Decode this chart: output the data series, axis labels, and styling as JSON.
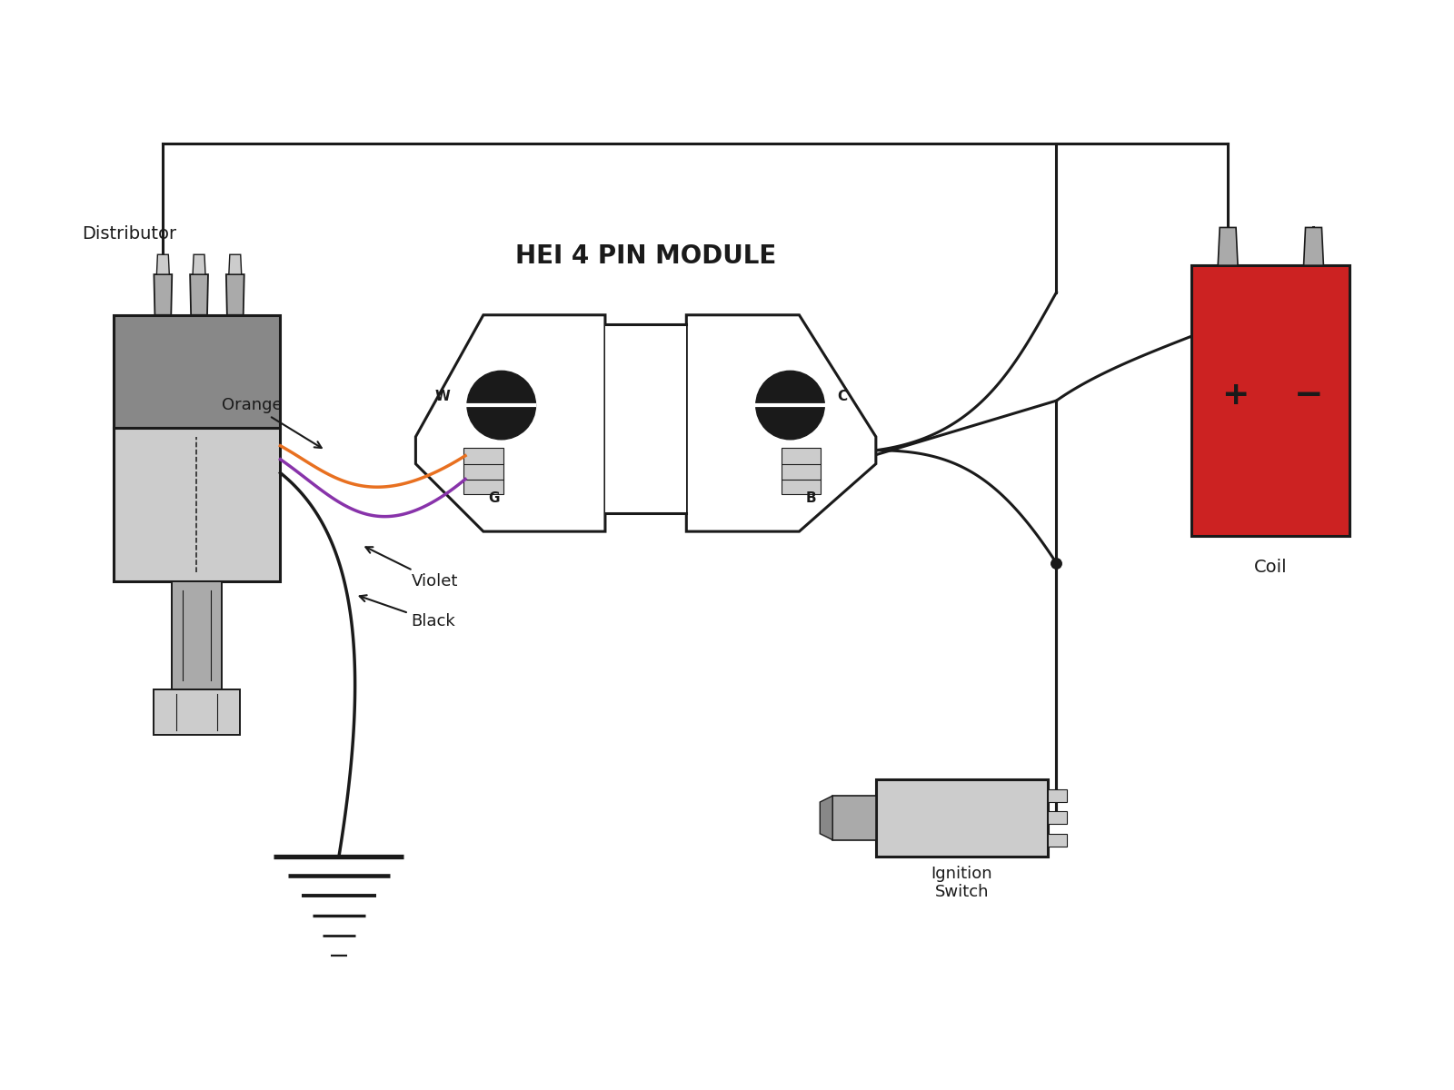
{
  "title": "HEI 4 PIN MODULE",
  "bg_color": "#ffffff",
  "line_color": "#1a1a1a",
  "distributor_label": "Distributor",
  "coil_label": "Coil",
  "ignition_label": "Ignition\nSwitch",
  "orange_label": "Orange",
  "violet_label": "Violet",
  "black_label": "Black",
  "gray_dark": "#888888",
  "gray_mid": "#aaaaaa",
  "gray_light": "#cccccc",
  "red_coil": "#cc2222",
  "orange_wire": "#e87020",
  "violet_wire": "#8833aa",
  "black_wire": "#1a1a1a"
}
